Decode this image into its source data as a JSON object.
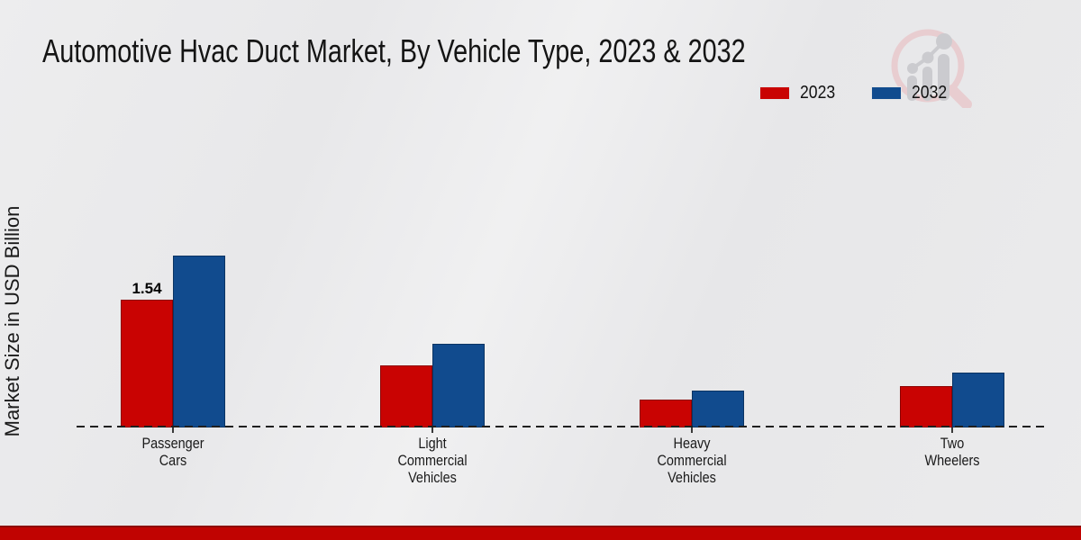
{
  "page": {
    "background_color": "#e9e9ea",
    "footer_band_color": "#c00301"
  },
  "chart_data": {
    "type": "bar",
    "title": "Automotive Hvac Duct Market, By Vehicle Type, 2023 & 2032",
    "ylabel": "Market Size in USD Billion",
    "xlabel": "",
    "unit": "USD Billion",
    "categories": [
      "Passenger Cars",
      "Light Commercial Vehicles",
      "Heavy Commercial Vehicles",
      "Two Wheelers"
    ],
    "category_label_lines": [
      [
        "Passenger",
        "Cars"
      ],
      [
        "Light",
        "Commercial",
        "Vehicles"
      ],
      [
        "Heavy",
        "Commercial",
        "Vehicles"
      ],
      [
        "Two",
        "Wheelers"
      ]
    ],
    "series": [
      {
        "name": "2023",
        "color": "#c90302",
        "values": [
          1.54,
          0.75,
          0.34,
          0.5
        ]
      },
      {
        "name": "2032",
        "color": "#114b8e",
        "values": [
          2.07,
          1.01,
          0.45,
          0.66
        ]
      }
    ],
    "data_labels": [
      {
        "series": "2023",
        "category": "Passenger Cars",
        "text": "1.54"
      }
    ],
    "ylim": [
      0,
      2.4
    ],
    "grid": false,
    "legend_position": "top-right",
    "baseline_style": "dashed-black"
  },
  "legend": {
    "items": [
      {
        "label": "2023",
        "color": "#c90302"
      },
      {
        "label": "2032",
        "color": "#114b8e"
      }
    ]
  },
  "watermark": {
    "icon": "magnifier-bar-chart-logo",
    "ring_color": "#e8cdd0",
    "bar_color": "#cbcbcf"
  }
}
